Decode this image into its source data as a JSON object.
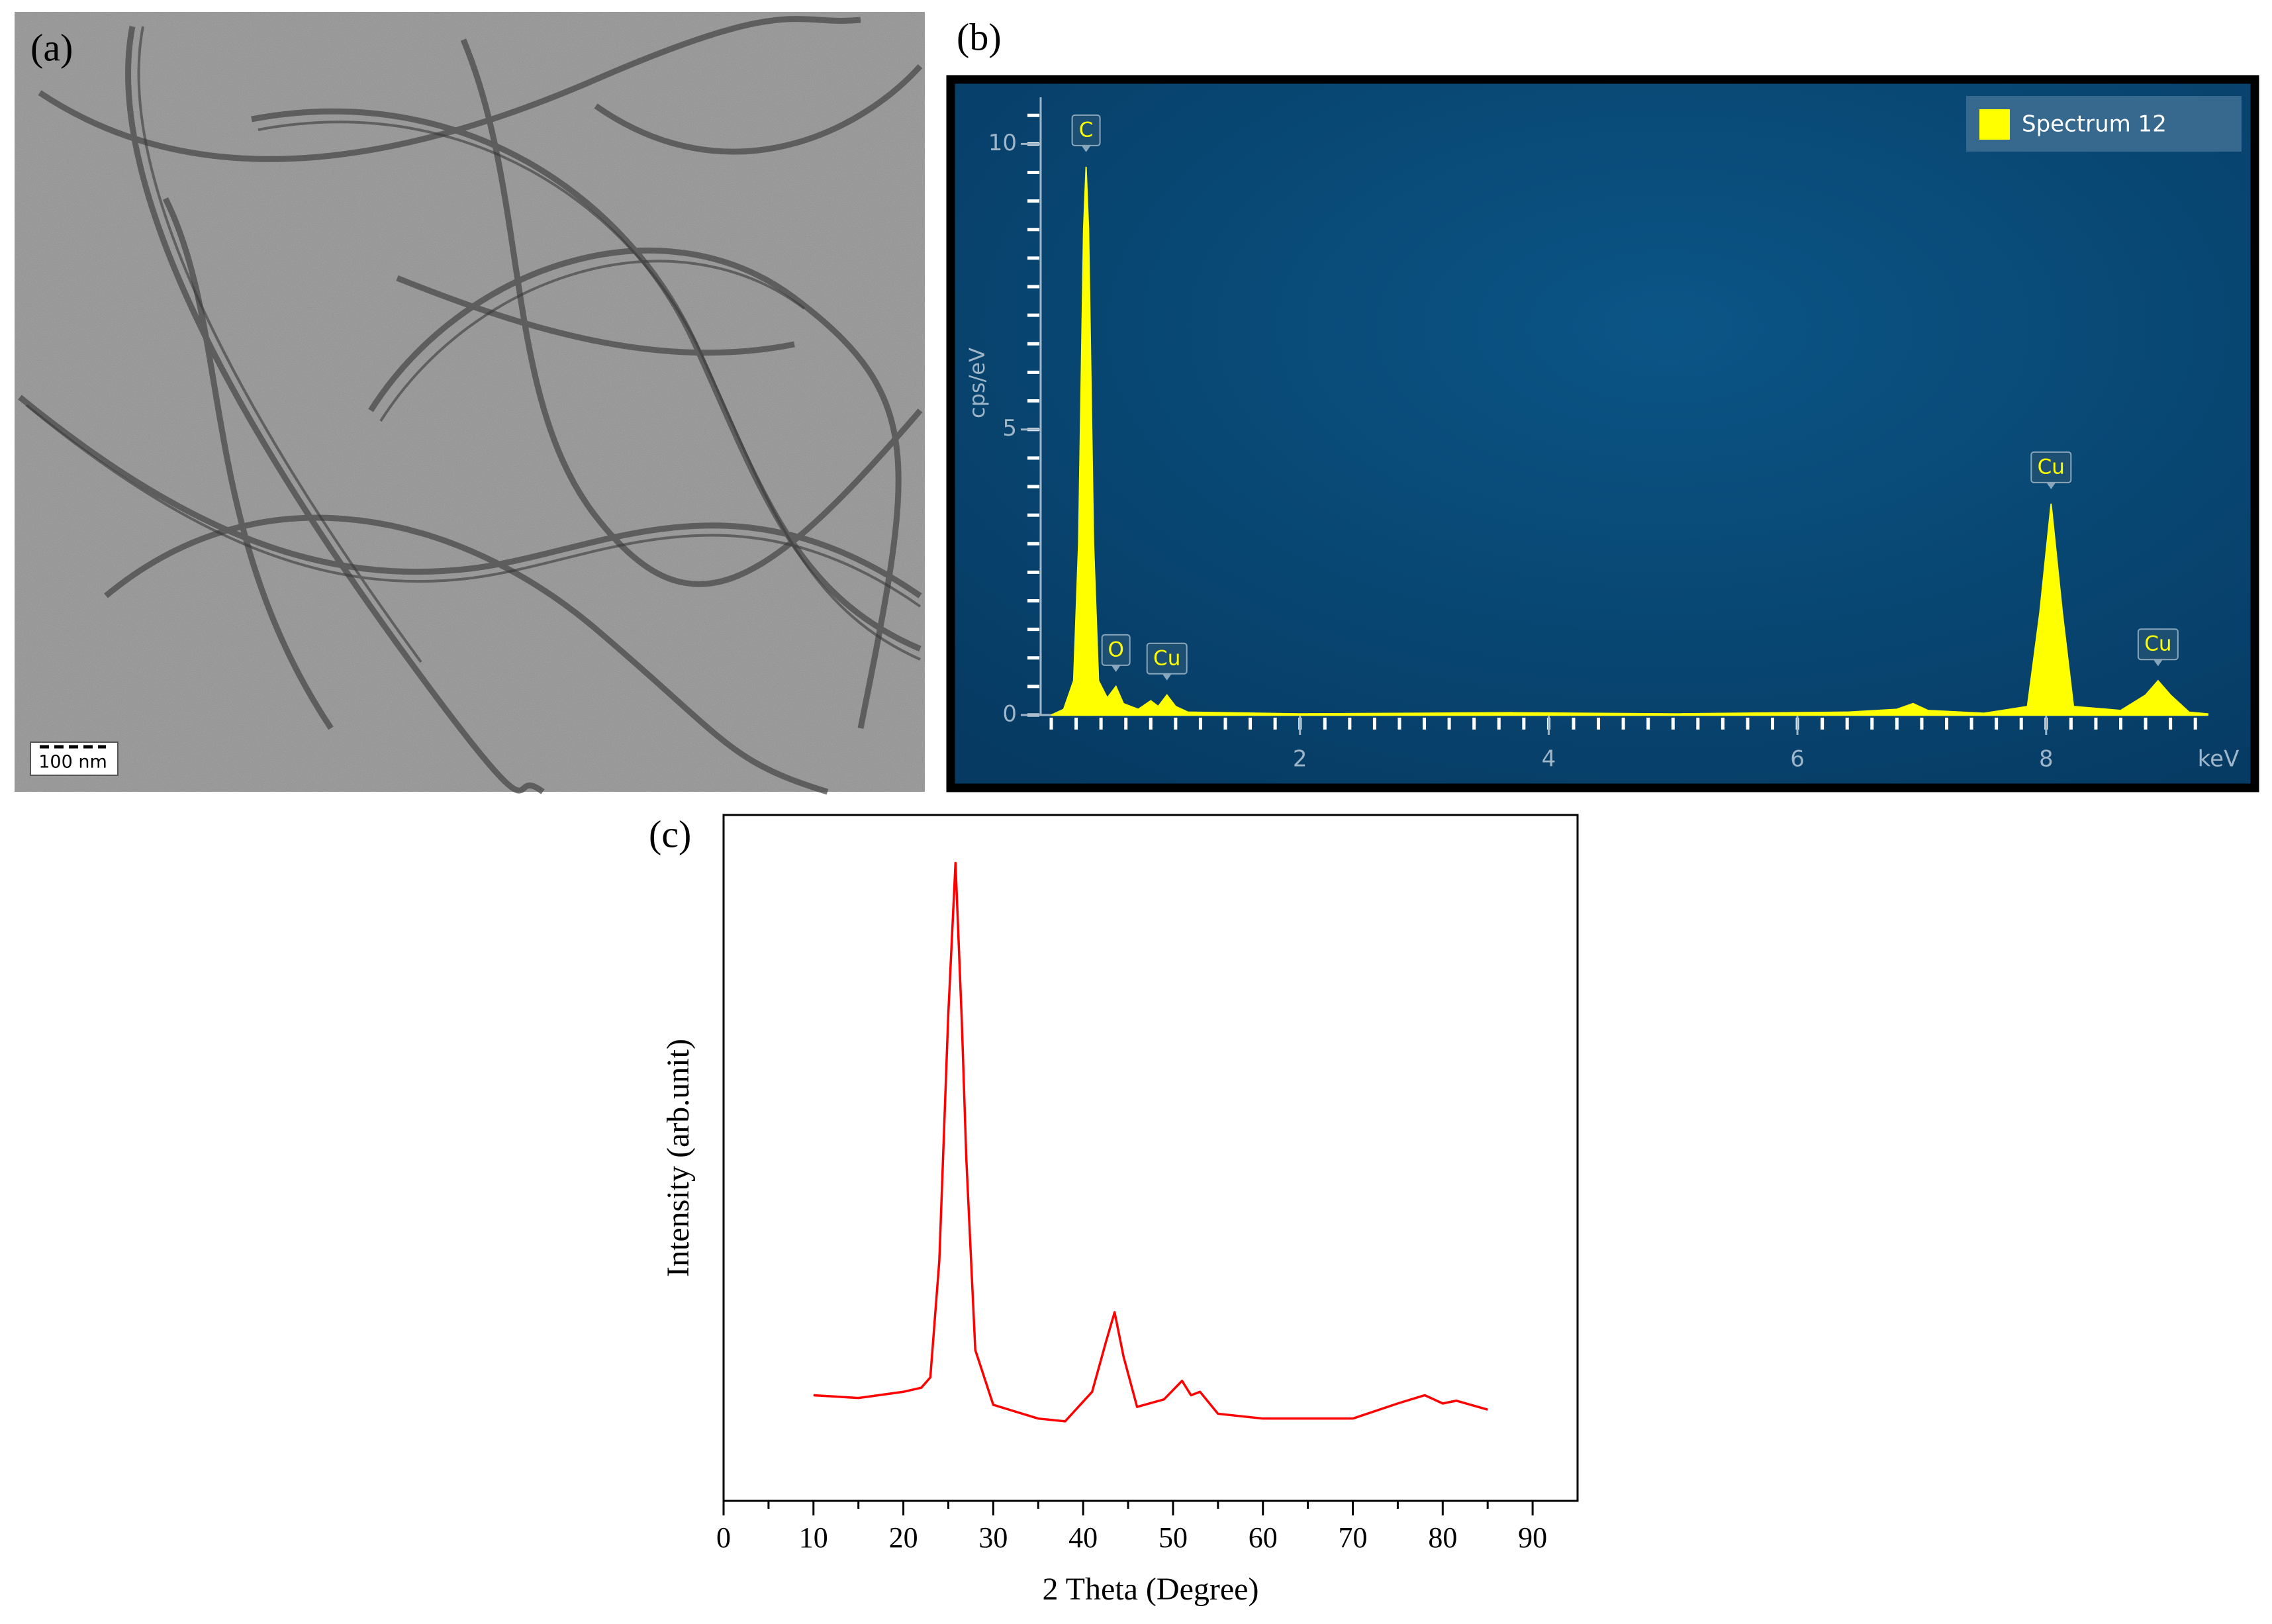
{
  "image": {
    "label": "(a)",
    "scale_bar": "100 nm"
  },
  "chart_data": [
    {
      "type": "area",
      "label": "(b)",
      "x_label": "keV",
      "y_label": "cps/eV",
      "series": [
        {
          "name": "Spectrum 12",
          "color": "#ffff00",
          "x": [
            0.0,
            0.1,
            0.18,
            0.22,
            0.26,
            0.28,
            0.3,
            0.34,
            0.38,
            0.45,
            0.52,
            0.58,
            0.7,
            0.8,
            0.86,
            0.93,
            1.0,
            1.1,
            2.0,
            3.7,
            5.0,
            6.4,
            6.8,
            6.93,
            7.05,
            7.5,
            7.85,
            7.95,
            8.04,
            8.13,
            8.22,
            8.6,
            8.8,
            8.9,
            9.0,
            9.15,
            9.3
          ],
          "values": [
            0,
            0.1,
            0.6,
            3,
            8.5,
            9.6,
            8.5,
            3,
            0.6,
            0.3,
            0.5,
            0.2,
            0.1,
            0.25,
            0.15,
            0.35,
            0.15,
            0.05,
            0.02,
            0.04,
            0.02,
            0.05,
            0.1,
            0.2,
            0.08,
            0.03,
            0.15,
            1.8,
            3.7,
            1.8,
            0.15,
            0.08,
            0.35,
            0.6,
            0.35,
            0.05,
            0.02
          ]
        }
      ],
      "peaks": [
        {
          "label": "C",
          "x": 0.28,
          "value": 9.6
        },
        {
          "label": "O",
          "x": 0.52,
          "value": 0.5
        },
        {
          "label": "Cu",
          "x": 0.93,
          "value": 0.35
        },
        {
          "label": "Cu",
          "x": 8.04,
          "value": 3.7
        },
        {
          "label": "Cu",
          "x": 8.9,
          "value": 0.6
        }
      ],
      "xlim": [
        0,
        9.3
      ],
      "ylim": [
        0,
        10.7
      ],
      "xticks": [
        2,
        4,
        6,
        8
      ],
      "yticks": [
        0,
        5,
        10
      ],
      "legend": "top-right"
    },
    {
      "type": "line",
      "label": "(c)",
      "x_label": "2 Theta (Degree)",
      "y_label": "Intensity (arb.unit)",
      "series": [
        {
          "name": null,
          "color": "#ff0000",
          "x": [
            10,
            15,
            20,
            22,
            23,
            24,
            25,
            25.8,
            26.5,
            27,
            28,
            30,
            35,
            38,
            41,
            42.5,
            43.5,
            44.5,
            46,
            49,
            51,
            52,
            53,
            55,
            60,
            70,
            75,
            78,
            80,
            81.5,
            85
          ],
          "values": [
            15.4,
            15,
            15.9,
            16.5,
            18,
            35,
            71,
            93,
            70,
            50,
            22,
            14,
            12,
            11.6,
            15.9,
            23,
            27.5,
            21,
            13.7,
            14.8,
            17.5,
            15.4,
            15.9,
            12.7,
            12,
            12,
            14.2,
            15.4,
            14.2,
            14.6,
            13.3
          ]
        }
      ],
      "xlim": [
        0,
        95
      ],
      "ylim": [
        0,
        100
      ],
      "xticks": [
        0,
        10,
        20,
        30,
        40,
        50,
        60,
        70,
        80,
        90
      ]
    }
  ]
}
